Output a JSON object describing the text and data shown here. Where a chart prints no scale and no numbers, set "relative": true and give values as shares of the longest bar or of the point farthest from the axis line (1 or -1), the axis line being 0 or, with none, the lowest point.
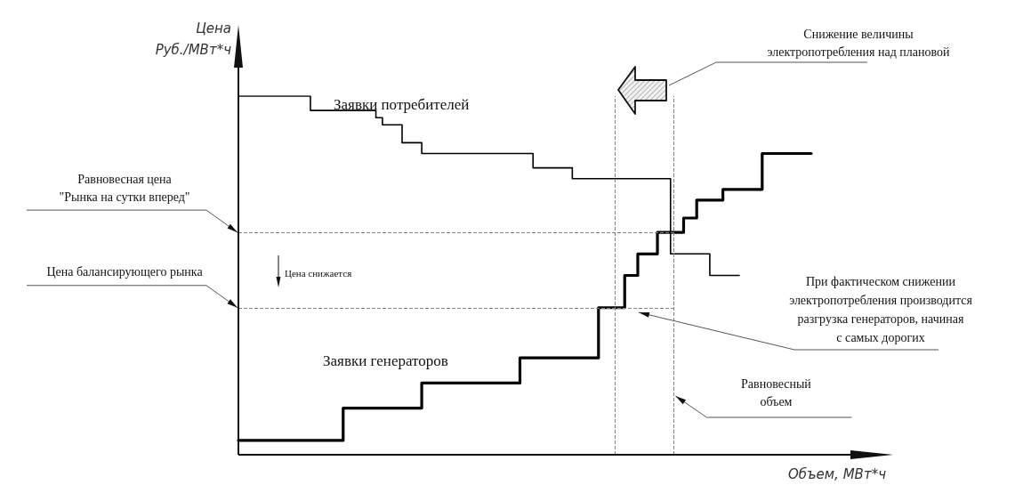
{
  "chart_data": {
    "type": "step",
    "relative": true,
    "xlabel": "Объем, МВт*ч",
    "ylabel": "Цена\nРуб./МВт*ч",
    "marker": "none",
    "line_style": "solid",
    "categories": [
      null,
      null,
      null,
      null,
      null,
      null,
      null,
      null,
      null,
      null,
      null,
      null,
      null,
      null,
      null,
      null,
      null,
      null,
      null,
      null,
      null,
      null,
      null,
      null,
      null,
      null,
      null,
      null,
      null,
      null,
      null,
      null,
      null,
      null,
      null,
      null,
      null,
      null,
      null,
      null,
      null,
      null,
      null,
      null,
      null,
      null,
      null,
      null,
      null,
      null,
      null,
      null,
      null,
      null,
      null,
      null,
      null,
      null,
      null,
      null,
      null,
      null,
      null,
      null,
      null,
      null,
      null,
      null,
      null,
      null,
      null,
      null,
      null,
      null,
      null,
      null,
      null,
      null,
      null,
      null,
      null,
      null,
      null,
      null,
      null,
      null,
      null,
      null,
      null,
      null,
      null,
      null,
      null,
      null,
      null,
      null,
      null,
      null,
      null,
      null,
      null,
      null,
      null,
      null,
      null,
      null,
      null,
      null,
      null,
      null,
      null,
      null,
      null,
      null,
      null,
      null,
      null,
      null,
      null,
      null,
      null,
      null,
      null,
      null,
      null,
      null,
      null,
      null,
      null,
      null,
      null,
      null,
      null,
      null,
      null,
      null,
      null,
      null,
      null,
      null,
      null,
      null,
      null,
      null,
      null,
      null,
      null,
      null,
      null,
      null,
      null,
      null,
      null,
      null,
      null,
      null,
      null,
      null,
      null,
      null,
      null,
      null,
      null,
      null,
      null,
      null,
      null,
      null,
      null,
      null,
      null,
      null,
      null,
      null,
      null,
      null,
      null,
      null,
      null,
      null,
      null,
      null,
      null,
      null,
      null,
      null,
      null,
      null,
      null,
      null,
      null,
      null,
      null,
      null,
      null,
      null,
      null,
      null,
      null,
      null,
      null
    ],
    "series": [
      {
        "name": "Заявки потребителей",
        "color": "#000000",
        "values": [
          1,
          1,
          1,
          1,
          1,
          1,
          1,
          1,
          1,
          1,
          1,
          1,
          1,
          1,
          1,
          1,
          1,
          1,
          1,
          1,
          1,
          1,
          0.96,
          0.96,
          0.96,
          0.96,
          0.96,
          0.96,
          0.96,
          0.96,
          0.96,
          0.96,
          0.96,
          0.96,
          0.96,
          0.96,
          0.96,
          0.96,
          0.96,
          0.96,
          0.96,
          0.96,
          0.94,
          0.94,
          0.92,
          0.92,
          0.92,
          0.92,
          0.92,
          0.92,
          0.87,
          0.87,
          0.87,
          0.87,
          0.87,
          0.87,
          0.84,
          0.84,
          0.84,
          0.84,
          0.84,
          0.84,
          0.84,
          0.84,
          0.84,
          0.84,
          0.84,
          0.84,
          0.84,
          0.84,
          0.84,
          0.84,
          0.84,
          0.84,
          0.84,
          0.84,
          0.84,
          0.84,
          0.84,
          0.84,
          0.84,
          0.84,
          0.84,
          0.84,
          0.84,
          0.84,
          0.84,
          0.84,
          0.84,
          0.84,
          0.8,
          0.8,
          0.8,
          0.8,
          0.8,
          0.8,
          0.8,
          0.8,
          0.8,
          0.8,
          0.8,
          0.8,
          0.77,
          0.77,
          0.77,
          0.77,
          0.77,
          0.77,
          0.77,
          0.77,
          0.77,
          0.77,
          0.77,
          0.77,
          0.77,
          0.77,
          0.77,
          0.77,
          0.77,
          0.77,
          0.77,
          0.77,
          0.77,
          0.77,
          0.77,
          0.77,
          0.77,
          0.77,
          0.77,
          0.77,
          0.77,
          0.77,
          0.56,
          0.56,
          0.56,
          0.56,
          0.56,
          0.56,
          0.56,
          0.56,
          0.56,
          0.56,
          0.56,
          0.56,
          0.5,
          0.5,
          0.5,
          0.5,
          0.5,
          0.5,
          0.5,
          0.5,
          0.5,
          null,
          null,
          null,
          null,
          null,
          null,
          null,
          null,
          null,
          null,
          null,
          null,
          null,
          null,
          null,
          null,
          null,
          null,
          null,
          null,
          null,
          null,
          null,
          null,
          null,
          null,
          null,
          null,
          null,
          null,
          null,
          null,
          null,
          null,
          null,
          null,
          null,
          null,
          null,
          null,
          null,
          null,
          null,
          null,
          null,
          null,
          null,
          null
        ]
      },
      {
        "name": "Заявки генераторов",
        "color": "#000000",
        "values": [
          0.04,
          0.04,
          0.04,
          0.04,
          0.04,
          0.04,
          0.04,
          0.04,
          0.04,
          0.04,
          0.04,
          0.04,
          0.04,
          0.04,
          0.04,
          0.04,
          0.04,
          0.04,
          0.04,
          0.04,
          0.04,
          0.04,
          0.04,
          0.04,
          0.04,
          0.04,
          0.04,
          0.04,
          0.04,
          0.04,
          0.04,
          0.04,
          0.13,
          0.13,
          0.13,
          0.13,
          0.13,
          0.13,
          0.13,
          0.13,
          0.13,
          0.13,
          0.13,
          0.13,
          0.13,
          0.13,
          0.13,
          0.13,
          0.13,
          0.13,
          0.13,
          0.13,
          0.13,
          0.13,
          0.13,
          0.13,
          0.2,
          0.2,
          0.2,
          0.2,
          0.2,
          0.2,
          0.2,
          0.2,
          0.2,
          0.2,
          0.2,
          0.2,
          0.2,
          0.2,
          0.2,
          0.2,
          0.2,
          0.2,
          0.2,
          0.2,
          0.2,
          0.2,
          0.2,
          0.2,
          0.2,
          0.2,
          0.2,
          0.2,
          0.2,
          0.2,
          0.27,
          0.27,
          0.27,
          0.27,
          0.27,
          0.27,
          0.27,
          0.27,
          0.27,
          0.27,
          0.27,
          0.27,
          0.27,
          0.27,
          0.27,
          0.27,
          0.27,
          0.27,
          0.27,
          0.27,
          0.27,
          0.27,
          0.27,
          0.27,
          0.41,
          0.41,
          0.41,
          0.41,
          0.41,
          0.41,
          0.41,
          0.41,
          0.5,
          0.5,
          0.5,
          0.5,
          0.56,
          0.56,
          0.56,
          0.56,
          0.56,
          0.56,
          0.62,
          0.62,
          0.62,
          0.62,
          0.62,
          0.62,
          0.62,
          0.62,
          0.66,
          0.66,
          0.66,
          0.66,
          0.71,
          0.71,
          0.71,
          0.71,
          0.71,
          0.71,
          0.71,
          0.71,
          0.74,
          0.74,
          0.74,
          0.74,
          0.74,
          0.74,
          0.74,
          0.74,
          0.74,
          0.74,
          0.74,
          0.74,
          0.84,
          0.84,
          0.84,
          0.84,
          0.84,
          0.84,
          0.84,
          0.84,
          0.84,
          0.84,
          0.84,
          0.84,
          0.84,
          0.84,
          0.84,
          null,
          null,
          null,
          null,
          null,
          null,
          null,
          null,
          null,
          null,
          null,
          null,
          null,
          null,
          null,
          null,
          null,
          null,
          null,
          null,
          null,
          null,
          null,
          null,
          null,
          null
        ]
      }
    ],
    "ref_lines": [
      {
        "axis": "y",
        "value": 0.62,
        "label": "Равновесная цена\n\"Рынка на сутки вперед\"",
        "color": "#808080",
        "line_style": "dashed"
      },
      {
        "axis": "y",
        "value": 0.41,
        "label": "Цена балансирующего рынка",
        "color": "#808080",
        "line_style": "dashed"
      }
    ],
    "annotations": [
      "Снижение величины\nэлектропотребления над плановой",
      "Цена снижается",
      "При фактическом снижении\nэлектропотребления производится\nразгрузка генераторов, начиная\nс самых дорогих",
      "Равновесный\nобъем"
    ]
  }
}
